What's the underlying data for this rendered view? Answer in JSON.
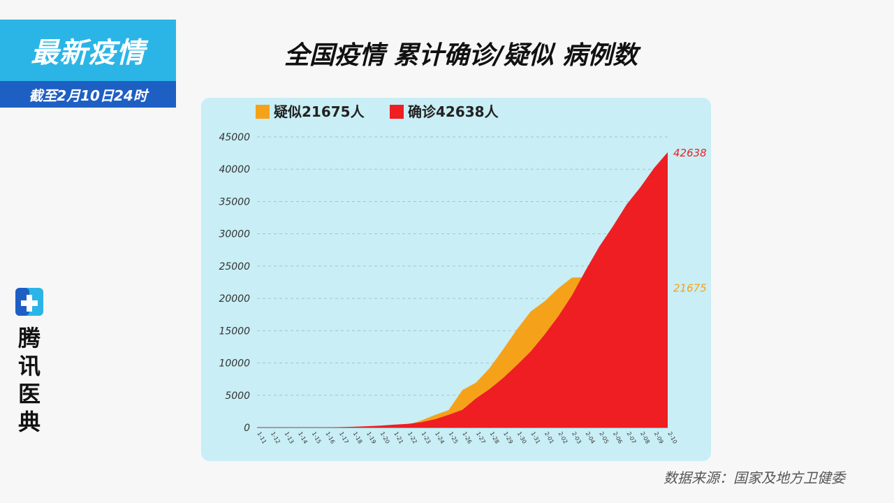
{
  "badge": {
    "title": "最新疫情",
    "subtitle": "截至2月10日24时"
  },
  "title": "全国疫情 累计确诊/疑似 病例数",
  "brand": {
    "name_chars": [
      "腾",
      "讯",
      "医",
      "典"
    ],
    "logo_icon": "tencent-medical-logo-icon"
  },
  "source": "数据来源：国家及地方卫健委",
  "colors": {
    "suspected": "#f5a21a",
    "confirmed": "#ee1e23",
    "panel": "#c9eef5",
    "badge_top": "#2bb5e6",
    "badge_bottom": "#1e5fc4"
  },
  "chart_data": {
    "type": "area",
    "title": "",
    "xlabel": "",
    "ylabel": "",
    "ylim": [
      0,
      45000
    ],
    "yticks": [
      0,
      5000,
      10000,
      15000,
      20000,
      25000,
      30000,
      35000,
      40000,
      45000
    ],
    "grid": true,
    "legend_position": "top-left",
    "x": [
      "1-11",
      "1-12",
      "1-13",
      "1-14",
      "1-15",
      "1-16",
      "1-17",
      "1-18",
      "1-19",
      "1-20",
      "1-21",
      "1-22",
      "1-23",
      "1-24",
      "1-25",
      "1-26",
      "1-27",
      "1-28",
      "1-29",
      "1-30",
      "1-31",
      "2-01",
      "2-02",
      "2-03",
      "2-04",
      "2-05",
      "2-06",
      "2-07",
      "2-08",
      "2-09",
      "2-10"
    ],
    "series": [
      {
        "name": "疑似21675人",
        "values": [
          0,
          0,
          0,
          0,
          0,
          0,
          0,
          0,
          0,
          0,
          0,
          400,
          1100,
          1950,
          2700,
          5800,
          6970,
          9240,
          12170,
          15240,
          17990,
          19540,
          21560,
          23210,
          23270,
          24700,
          26360,
          27660,
          28940,
          23590,
          21675
        ]
      },
      {
        "name": "确诊42638人",
        "values": [
          41,
          41,
          41,
          41,
          41,
          45,
          62,
          121,
          198,
          291,
          440,
          571,
          830,
          1287,
          1975,
          2744,
          4515,
          5974,
          7711,
          9692,
          11791,
          14380,
          17205,
          20438,
          24324,
          28018,
          31161,
          34546,
          37198,
          40171,
          42638
        ]
      }
    ],
    "end_labels": [
      "42638",
      "21675"
    ]
  }
}
